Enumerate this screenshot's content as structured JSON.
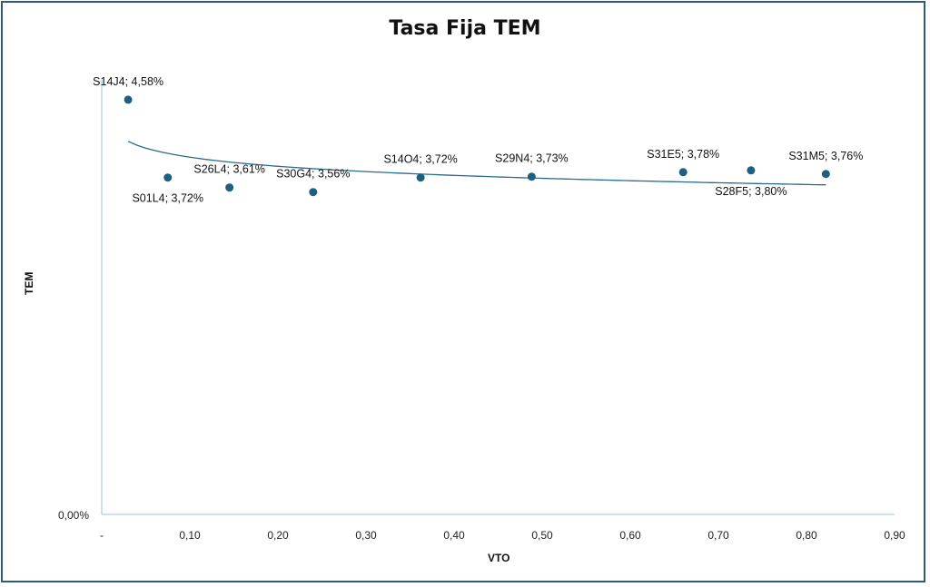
{
  "chart_data": {
    "type": "scatter",
    "title": "Tasa Fija TEM",
    "xlabel": "VTO",
    "ylabel": "TEM",
    "x_ticks": [
      "-",
      "0,10",
      "0,20",
      "0,30",
      "0,40",
      "0,50",
      "0,60",
      "0,70",
      "0,80",
      "0,90"
    ],
    "y_ticks": [
      "0,00%"
    ],
    "xlim": [
      0,
      0.9
    ],
    "ylim": [
      0,
      5.0
    ],
    "grid": false,
    "legend": "none",
    "points": [
      {
        "x": 0.03,
        "y": 4.58,
        "label": "S14J4; 4,58%",
        "label_pos": "above"
      },
      {
        "x": 0.075,
        "y": 3.72,
        "label": "S01L4; 3,72%",
        "label_pos": "below"
      },
      {
        "x": 0.145,
        "y": 3.61,
        "label": "S26L4; 3,61%",
        "label_pos": "above"
      },
      {
        "x": 0.24,
        "y": 3.56,
        "label": "S30G4; 3,56%",
        "label_pos": "above"
      },
      {
        "x": 0.362,
        "y": 3.72,
        "label": "S14O4; 3,72%",
        "label_pos": "above"
      },
      {
        "x": 0.488,
        "y": 3.73,
        "label": "S29N4; 3,73%",
        "label_pos": "above"
      },
      {
        "x": 0.66,
        "y": 3.78,
        "label": "S31E5; 3,78%",
        "label_pos": "above"
      },
      {
        "x": 0.737,
        "y": 3.8,
        "label": "S28F5; 3,80%",
        "label_pos": "below"
      },
      {
        "x": 0.822,
        "y": 3.76,
        "label": "S31M5; 3,76%",
        "label_pos": "above"
      }
    ],
    "trendline": {
      "type": "logarithmic",
      "x_range": [
        0.03,
        0.822
      ],
      "y_start": 4.12,
      "y_end": 3.64
    },
    "colors": {
      "point": "#1f5f80",
      "trend": "#2a6b8a",
      "axis": "#9cc3dc",
      "border": "#2e5b78"
    }
  }
}
